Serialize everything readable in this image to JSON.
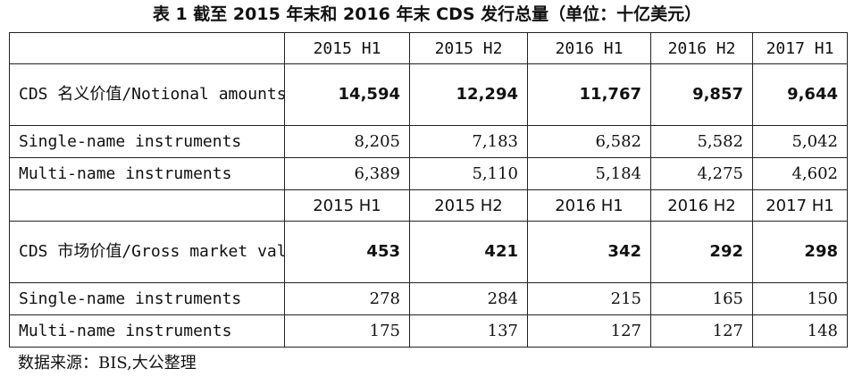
{
  "title": "表 1   截至 2015 年末和 2016 年末 CDS 发行总量（单位：十亿美元）",
  "notional": {
    "headers": [
      "2015 H1",
      "2015 H2",
      "2016 H1",
      "2016 H2",
      "2017 H1"
    ],
    "total": {
      "label": "CDS 名义价值/Notional amounts outstanding",
      "values": [
        "14,594",
        "12,294",
        "11,767",
        "9,857",
        "9,644"
      ]
    },
    "single": {
      "label": "Single-name instruments",
      "values": [
        "8,205",
        "7,183",
        "6,582",
        "5,582",
        "5,042"
      ]
    },
    "multi": {
      "label": "Multi-name instruments",
      "values": [
        "6,389",
        "5,110",
        "5,184",
        "4,275",
        "4,602"
      ]
    }
  },
  "gross": {
    "headers": [
      "2015 H1",
      "2015 H2",
      "2016 H1",
      "2016 H2",
      "2017 H1"
    ],
    "total": {
      "label": "CDS 市场价值/Gross market value",
      "values": [
        "453",
        "421",
        "342",
        "292",
        "298"
      ]
    },
    "single": {
      "label": "Single-name instruments",
      "values": [
        "278",
        "284",
        "215",
        "165",
        "150"
      ]
    },
    "multi": {
      "label": "Multi-name instruments",
      "values": [
        "175",
        "137",
        "127",
        "127",
        "148"
      ]
    }
  },
  "source": "数据来源：BIS,大公整理"
}
